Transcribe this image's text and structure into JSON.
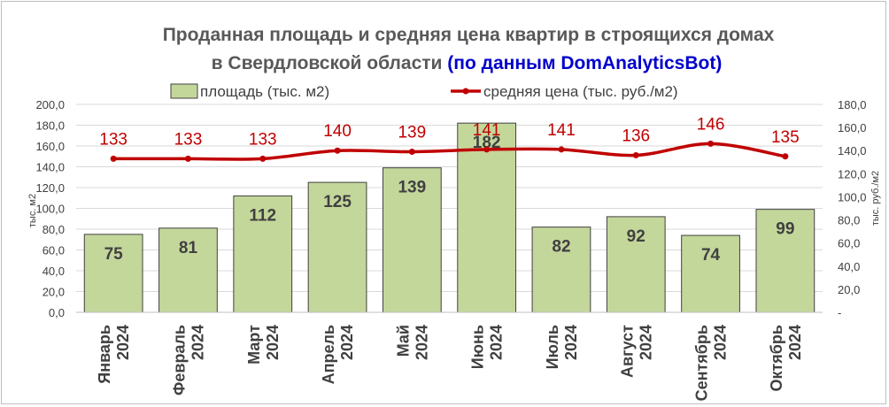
{
  "chart_data": {
    "type": "bar",
    "title": "Проданная площадь и средняя цена квартир в строящихся домах",
    "title_line2": "в Свердловской области",
    "title_source": "(по данным DomAnalyticsBot)",
    "categories": [
      [
        "Январь",
        "2024"
      ],
      [
        "Февраль",
        "2024"
      ],
      [
        "Март",
        "2024"
      ],
      [
        "Апрель",
        "2024"
      ],
      [
        "Май",
        "2024"
      ],
      [
        "Июнь",
        "2024"
      ],
      [
        "Июль",
        "2024"
      ],
      [
        "Август",
        "2024"
      ],
      [
        "Сентябрь",
        "2024"
      ],
      [
        "Октябрь",
        "2024"
      ]
    ],
    "series": [
      {
        "name": "площадь (тыс. м2)",
        "type": "bar",
        "axis": "left",
        "color": "#c4d79b",
        "values": [
          75,
          81,
          112,
          125,
          139,
          182,
          82,
          92,
          74,
          99
        ]
      },
      {
        "name": "средняя цена (тыс. руб./м2)",
        "type": "line",
        "axis": "right",
        "color": "#c00000",
        "values": [
          133,
          133,
          133,
          140,
          139,
          141,
          141,
          136,
          146,
          135
        ]
      }
    ],
    "ylabel": "тыс. м2",
    "y2label": "тыс. руб./м2",
    "ylim": [
      0,
      200
    ],
    "y2lim": [
      0,
      180
    ],
    "yticks": [
      "0,0",
      "20,0",
      "40,0",
      "60,0",
      "80,0",
      "100,0",
      "120,0",
      "140,0",
      "160,0",
      "180,0",
      "200,0"
    ],
    "y2ticks": [
      "-",
      "20,0",
      "40,0",
      "60,0",
      "80,0",
      "100,0",
      "120,0",
      "140,0",
      "160,0",
      "180,0"
    ],
    "grid": true,
    "legend_position": "top",
    "colors": {
      "grid": "#d9d9d9",
      "bar_border": "#404040",
      "title": "#595959",
      "title_accent": "#0000cc"
    }
  }
}
